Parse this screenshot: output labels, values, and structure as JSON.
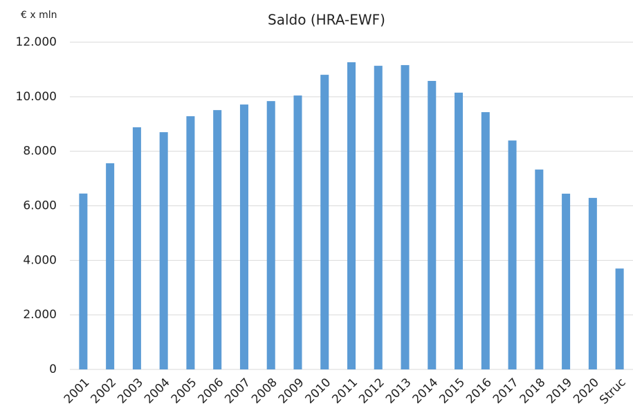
{
  "chart_data": {
    "type": "bar",
    "title": "Saldo (HRA-EWF)",
    "y_label": "€ x mln",
    "categories": [
      "2001",
      "2002",
      "2003",
      "2004",
      "2005",
      "2006",
      "2007",
      "2008",
      "2009",
      "2010",
      "2011",
      "2012",
      "2013",
      "2014",
      "2015",
      "2016",
      "2017",
      "2018",
      "2019",
      "2020",
      "Struc"
    ],
    "values": [
      6450,
      7560,
      8880,
      8700,
      9285,
      9510,
      9715,
      9840,
      10045,
      10805,
      11265,
      11135,
      11160,
      10580,
      10150,
      9435,
      8395,
      7330,
      6445,
      6290,
      3700
    ],
    "color": "#5b9bd5",
    "ylim": [
      0,
      12000
    ],
    "yticks": [
      0,
      {
        "value": 2000,
        "label": "2.000"
      },
      {
        "value": 4000,
        "label": "4.000"
      },
      {
        "value": 6000,
        "label": "6.000"
      },
      {
        "value": 8000,
        "label": "8.000"
      },
      {
        "value": 10000,
        "label": "10.000"
      },
      {
        "value": 12000,
        "label": "12.000"
      }
    ],
    "grid": true
  }
}
